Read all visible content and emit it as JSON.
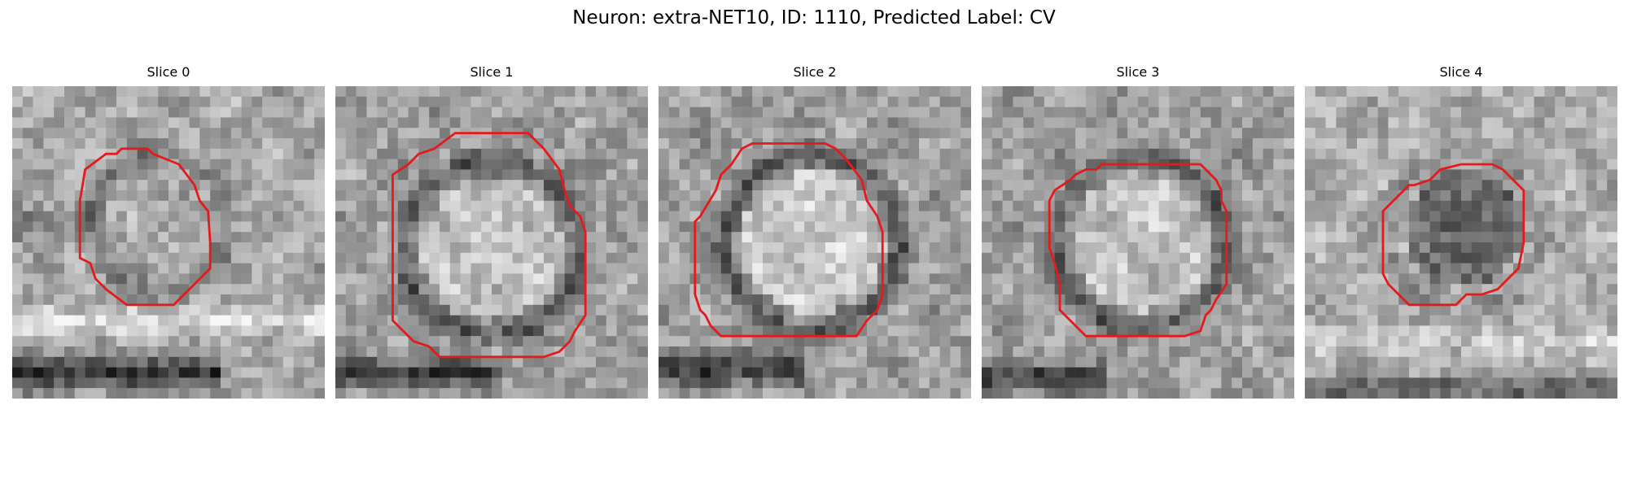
{
  "figure": {
    "title": "Neuron: extra-NET10, ID: 1110, Predicted Label: CV"
  },
  "contour_color": "#e41a1c",
  "colormap": "grayscale",
  "slices": [
    {
      "label": "Slice 0"
    },
    {
      "label": "Slice 1"
    },
    {
      "label": "Slice 2"
    },
    {
      "label": "Slice 3"
    },
    {
      "label": "Slice 4"
    }
  ]
}
